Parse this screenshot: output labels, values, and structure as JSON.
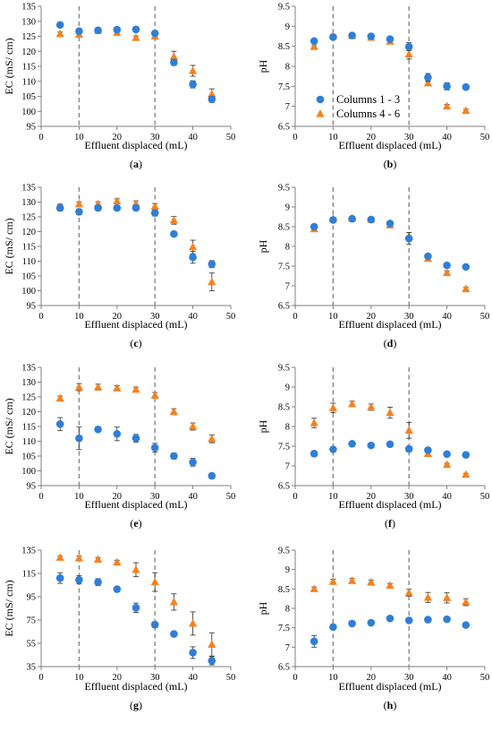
{
  "colors": {
    "s1": "#2f7ed8",
    "s2": "#f58220",
    "axis": "#7f7f7f",
    "err": "#404040",
    "divider": "#808080"
  },
  "legend": {
    "s1": "Columns 1 - 3",
    "s2": "Columns 4 - 6"
  },
  "chart_data": [
    {
      "panel": "a",
      "type": "scatter",
      "xlabel": "Effluent displaced (mL)",
      "ylabel": "EC (mS/ cm)",
      "xlim": [
        0,
        50
      ],
      "ylim": [
        95,
        135
      ],
      "xticks": [
        0,
        10,
        20,
        30,
        40,
        50
      ],
      "yticks": [
        95,
        100,
        105,
        110,
        115,
        120,
        125,
        130,
        135
      ],
      "dividers": [
        10,
        30
      ],
      "x": [
        5,
        10,
        15,
        20,
        25,
        30,
        35,
        40,
        45
      ],
      "series": [
        {
          "values": [
            128.8,
            126.7,
            127.0,
            127.2,
            127.3,
            126.0,
            116.3,
            109.0,
            104.0
          ],
          "errors": [
            0.6,
            0.6,
            0.5,
            0.6,
            0.5,
            0.6,
            1.0,
            1.2,
            1.0
          ]
        },
        {
          "values": [
            125.8,
            125.6,
            126.9,
            126.2,
            124.5,
            125.0,
            118.2,
            113.5,
            105.7
          ],
          "errors": [
            0.6,
            0.7,
            0.5,
            0.6,
            0.6,
            0.6,
            1.8,
            1.8,
            1.8
          ]
        }
      ]
    },
    {
      "panel": "b",
      "type": "scatter",
      "xlabel": "Effluent displaced (mL)",
      "ylabel": "pH",
      "xlim": [
        0,
        50
      ],
      "ylim": [
        6.5,
        9.5
      ],
      "xticks": [
        0,
        10,
        20,
        30,
        40,
        50
      ],
      "yticks": [
        6.5,
        7,
        7.5,
        8,
        8.5,
        9,
        9.5
      ],
      "dividers": [
        10,
        30
      ],
      "legend": true,
      "x": [
        5,
        10,
        15,
        20,
        25,
        30,
        35,
        40,
        45
      ],
      "series": [
        {
          "values": [
            8.63,
            8.73,
            8.77,
            8.75,
            8.68,
            8.49,
            7.72,
            7.5,
            7.48
          ],
          "errors": [
            0.04,
            0.04,
            0.03,
            0.03,
            0.03,
            0.1,
            0.1,
            0.09,
            0.03
          ]
        },
        {
          "values": [
            8.49,
            8.76,
            8.76,
            8.72,
            8.62,
            8.3,
            7.58,
            7.0,
            6.89
          ],
          "errors": [
            0.03,
            0.04,
            0.03,
            0.03,
            0.03,
            0.12,
            0.05,
            0.05,
            0.04
          ]
        }
      ]
    },
    {
      "panel": "c",
      "type": "scatter",
      "xlabel": "Effluent displaced (mL)",
      "ylabel": "EC (mS/ cm)",
      "xlim": [
        0,
        50
      ],
      "ylim": [
        95,
        135
      ],
      "xticks": [
        0,
        10,
        20,
        30,
        40,
        50
      ],
      "yticks": [
        95,
        100,
        105,
        110,
        115,
        120,
        125,
        130,
        135
      ],
      "dividers": [
        10,
        30
      ],
      "x": [
        5,
        10,
        15,
        20,
        25,
        30,
        35,
        40,
        45
      ],
      "series": [
        {
          "values": [
            128.0,
            126.7,
            128.0,
            128.0,
            128.0,
            126.3,
            119.2,
            111.3,
            109.0
          ],
          "errors": [
            1.0,
            1.0,
            0.6,
            0.6,
            0.6,
            1.0,
            0.6,
            2.0,
            1.2
          ]
        },
        {
          "values": [
            128.5,
            129.3,
            129.3,
            130.3,
            129.4,
            128.5,
            123.8,
            114.8,
            103.0
          ],
          "errors": [
            0.8,
            0.8,
            0.8,
            0.8,
            1.0,
            1.0,
            1.3,
            2.3,
            3.0
          ]
        }
      ]
    },
    {
      "panel": "d",
      "type": "scatter",
      "xlabel": "Effluent displaced (mL)",
      "ylabel": "pH",
      "xlim": [
        0,
        50
      ],
      "ylim": [
        6.5,
        9.5
      ],
      "xticks": [
        0,
        10,
        20,
        30,
        40,
        50
      ],
      "yticks": [
        6.5,
        7,
        7.5,
        8,
        8.5,
        9,
        9.5
      ],
      "dividers": [
        10,
        30
      ],
      "x": [
        5,
        10,
        15,
        20,
        25,
        30,
        35,
        40,
        45
      ],
      "series": [
        {
          "values": [
            8.5,
            8.67,
            8.7,
            8.68,
            8.58,
            8.2,
            7.75,
            7.52,
            7.48
          ],
          "errors": [
            0.04,
            0.04,
            0.03,
            0.03,
            0.03,
            0.15,
            0.05,
            0.04,
            0.03
          ]
        },
        {
          "values": [
            8.44,
            8.7,
            8.71,
            8.68,
            8.54,
            8.25,
            7.69,
            7.33,
            6.92
          ],
          "errors": [
            0.04,
            0.04,
            0.04,
            0.03,
            0.04,
            0.1,
            0.04,
            0.05,
            0.04
          ]
        }
      ]
    },
    {
      "panel": "e",
      "type": "scatter",
      "xlabel": "Effluent displaced (mL)",
      "ylabel": "EC (mS/ cm)",
      "xlim": [
        0,
        50
      ],
      "ylim": [
        95,
        135
      ],
      "xticks": [
        0,
        10,
        20,
        30,
        40,
        50
      ],
      "yticks": [
        95,
        100,
        105,
        110,
        115,
        120,
        125,
        130,
        135
      ],
      "dividers": [
        10,
        30
      ],
      "x": [
        5,
        10,
        15,
        20,
        25,
        30,
        35,
        40,
        45
      ],
      "series": [
        {
          "values": [
            115.8,
            111.0,
            114.0,
            112.5,
            111.0,
            107.8,
            105.0,
            102.9,
            98.3
          ],
          "errors": [
            2.2,
            3.8,
            0.5,
            2.3,
            1.3,
            1.5,
            1.0,
            1.3,
            0.6
          ]
        },
        {
          "values": [
            124.5,
            128.3,
            128.3,
            128.0,
            127.5,
            125.5,
            120.0,
            115.0,
            110.8
          ],
          "errors": [
            0.8,
            1.2,
            1.0,
            0.8,
            0.8,
            1.0,
            1.0,
            1.2,
            1.3
          ]
        }
      ]
    },
    {
      "panel": "f",
      "type": "scatter",
      "xlabel": "Effluent displaced (mL)",
      "ylabel": "pH",
      "xlim": [
        0,
        50
      ],
      "ylim": [
        6.5,
        9.5
      ],
      "xticks": [
        0,
        10,
        20,
        30,
        40,
        50
      ],
      "yticks": [
        6.5,
        7,
        7.5,
        8,
        8.5,
        9,
        9.5
      ],
      "dividers": [
        10,
        30
      ],
      "x": [
        5,
        10,
        15,
        20,
        25,
        30,
        35,
        40,
        45
      ],
      "series": [
        {
          "values": [
            7.31,
            7.42,
            7.56,
            7.52,
            7.55,
            7.43,
            7.4,
            7.3,
            7.28
          ],
          "errors": [
            0.07,
            0.06,
            0.03,
            0.03,
            0.03,
            0.07,
            0.04,
            0.03,
            0.02
          ]
        },
        {
          "values": [
            8.09,
            8.47,
            8.57,
            8.49,
            8.35,
            7.9,
            7.31,
            7.03,
            6.78
          ],
          "errors": [
            0.12,
            0.12,
            0.07,
            0.08,
            0.14,
            0.2,
            0.05,
            0.04,
            0.03
          ]
        }
      ]
    },
    {
      "panel": "g",
      "type": "scatter",
      "xlabel": "Effluent displaced (mL)",
      "ylabel": "EC (mS/ cm)",
      "xlim": [
        0,
        50
      ],
      "ylim": [
        35,
        135
      ],
      "xticks": [
        0,
        10,
        20,
        30,
        40,
        50
      ],
      "yticks": [
        35,
        55,
        75,
        95,
        115,
        135
      ],
      "dividers": [
        10,
        30
      ],
      "x": [
        5,
        10,
        15,
        20,
        25,
        30,
        35,
        40,
        45
      ],
      "series": [
        {
          "values": [
            111.0,
            109.5,
            107.5,
            101.5,
            85.5,
            71.0,
            63.0,
            47.0,
            40.0
          ],
          "errors": [
            4.5,
            3.5,
            3.0,
            1.5,
            4.0,
            2.5,
            1.2,
            5.0,
            3.5
          ]
        },
        {
          "values": [
            128.6,
            128.1,
            127.0,
            124.5,
            118.2,
            107.6,
            90.5,
            72.0,
            54.0
          ],
          "errors": [
            1.2,
            1.8,
            1.6,
            1.8,
            6.0,
            8.0,
            7.0,
            10.0,
            10.0
          ]
        }
      ]
    },
    {
      "panel": "h",
      "type": "scatter",
      "xlabel": "Effluent displaced (mL)",
      "ylabel": "pH",
      "xlim": [
        0,
        50
      ],
      "ylim": [
        6.5,
        9.5
      ],
      "xticks": [
        0,
        10,
        20,
        30,
        40,
        50
      ],
      "yticks": [
        6.5,
        7,
        7.5,
        8,
        8.5,
        9,
        9.5
      ],
      "dividers": [
        10,
        30
      ],
      "x": [
        5,
        10,
        15,
        20,
        25,
        30,
        35,
        40,
        45
      ],
      "series": [
        {
          "values": [
            7.15,
            7.52,
            7.61,
            7.63,
            7.74,
            7.69,
            7.71,
            7.72,
            7.57
          ],
          "errors": [
            0.15,
            0.05,
            0.05,
            0.04,
            0.04,
            0.05,
            0.04,
            0.06,
            0.03
          ]
        },
        {
          "values": [
            8.5,
            8.69,
            8.71,
            8.67,
            8.59,
            8.4,
            8.28,
            8.27,
            8.16
          ],
          "errors": [
            0.05,
            0.06,
            0.06,
            0.06,
            0.05,
            0.09,
            0.13,
            0.13,
            0.09
          ]
        }
      ]
    }
  ]
}
